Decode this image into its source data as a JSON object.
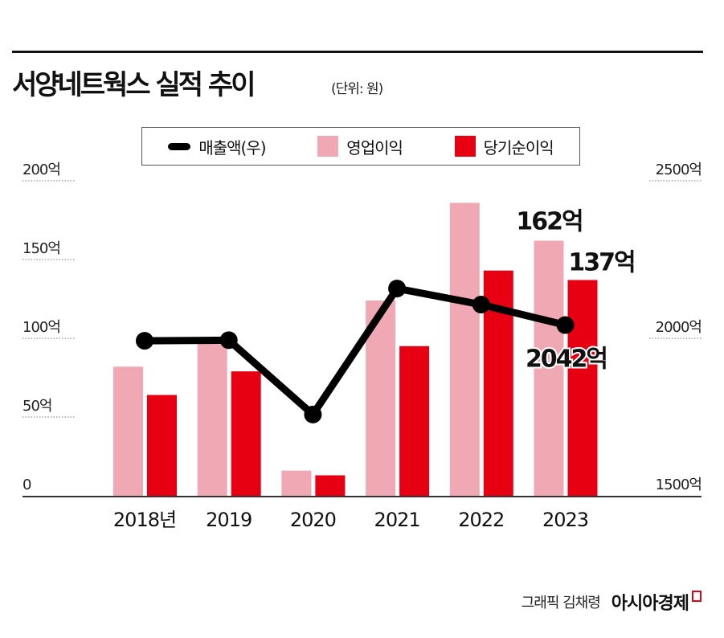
{
  "title": "서양네트웍스 실적 추이",
  "unit": "(단위: 원)",
  "credit": "그래픽 김채령",
  "brand": "아시아경제",
  "colors": {
    "line": "#000000",
    "operating": "#f0a9b4",
    "net": "#e60012"
  },
  "legend": {
    "revenue": "매출액(우)",
    "operating": "영업이익",
    "net": "당기순이익"
  },
  "chart_data": {
    "type": "bar+line",
    "categories": [
      "2018년",
      "2019",
      "2020",
      "2021",
      "2022",
      "2023"
    ],
    "left_axis": {
      "range": [
        0,
        200
      ],
      "ticks": [
        "0",
        "50억",
        "100억",
        "150억",
        "200억"
      ]
    },
    "right_axis": {
      "range": [
        1500,
        2500
      ],
      "ticks": [
        "1500억",
        "2000억",
        "2500억"
      ]
    },
    "series": [
      {
        "name": "영업이익",
        "type": "bar",
        "axis": "left",
        "values": [
          82,
          97,
          16,
          124,
          186,
          162
        ]
      },
      {
        "name": "당기순이익",
        "type": "bar",
        "axis": "left",
        "values": [
          64,
          79,
          13,
          95,
          143,
          137
        ]
      },
      {
        "name": "매출액(우)",
        "type": "line",
        "axis": "right",
        "values": [
          1992,
          1994,
          1758,
          2158,
          2107,
          2042
        ]
      }
    ],
    "annotations": {
      "operating_2023": "162억",
      "net_2023": "137억",
      "revenue_2023": "2042억"
    },
    "grid": "dotted at left-axis ticks",
    "legend_position": "top"
  }
}
